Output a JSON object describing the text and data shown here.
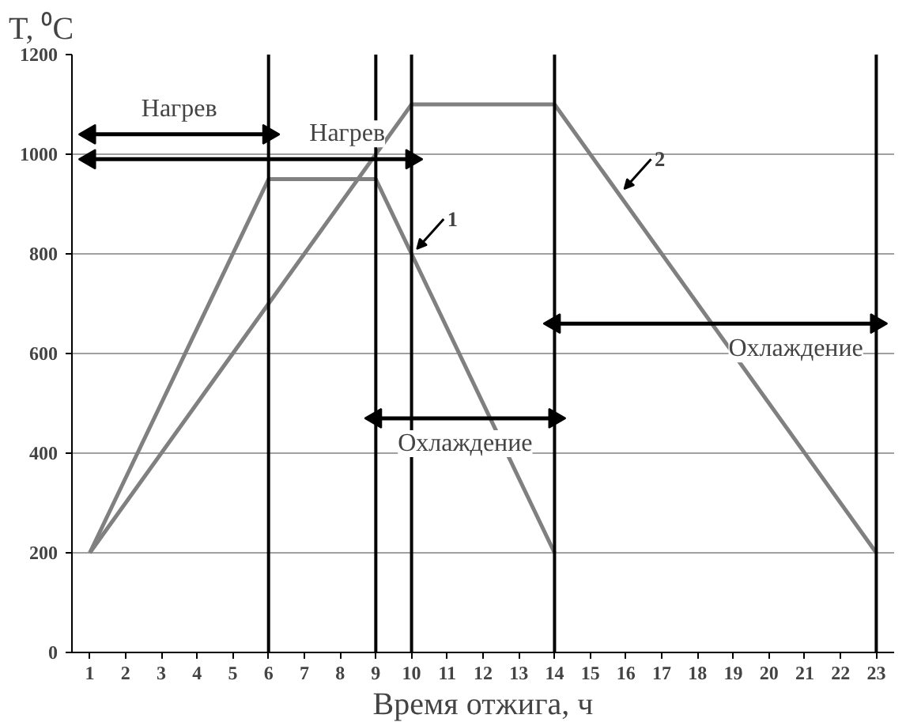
{
  "chart_data": {
    "type": "line",
    "xlabel": "Время отжига, ч",
    "ylabel": "T, ⁰C",
    "xlim": [
      0.5,
      23.5
    ],
    "xticks": [
      1,
      2,
      3,
      4,
      5,
      6,
      7,
      8,
      9,
      10,
      11,
      12,
      13,
      14,
      15,
      16,
      17,
      18,
      19,
      20,
      21,
      22,
      23
    ],
    "ylim": [
      0,
      1200
    ],
    "yticks": [
      0,
      200,
      400,
      600,
      800,
      1000,
      1200
    ],
    "grid": "y",
    "marker": "none",
    "line_style": "solid",
    "series": [
      {
        "name": "1",
        "color": "#808080",
        "x": [
          1,
          6,
          9,
          14
        ],
        "values": [
          200,
          950,
          950,
          200
        ]
      },
      {
        "name": "2",
        "color": "#808080",
        "x": [
          1,
          10,
          14,
          23
        ],
        "values": [
          200,
          1100,
          1100,
          200
        ]
      },
      {
        "color": "#000000",
        "x": [
          1,
          6
        ],
        "values": [
          1040,
          1040
        ],
        "marker": "triangle"
      },
      {
        "color": "#000000",
        "x": [
          1,
          10
        ],
        "values": [
          990,
          990
        ],
        "marker": "triangle"
      },
      {
        "color": "#000000",
        "x": [
          9,
          14
        ],
        "values": [
          470,
          470
        ],
        "marker": "triangle"
      },
      {
        "color": "#000000",
        "x": [
          14,
          23
        ],
        "values": [
          660,
          660
        ],
        "marker": "triangle"
      }
    ],
    "ref_lines": [
      {
        "axis": "x",
        "value": 6,
        "color": "#000000"
      },
      {
        "axis": "x",
        "value": 9,
        "color": "#000000"
      },
      {
        "axis": "x",
        "value": 10,
        "color": "#000000"
      },
      {
        "axis": "x",
        "value": 14,
        "color": "#000000"
      },
      {
        "axis": "x",
        "value": 23,
        "color": "#000000"
      }
    ],
    "annotations": [
      "Нагрев",
      "Нагрев",
      "Охлаждение",
      "Охлаждение"
    ]
  }
}
